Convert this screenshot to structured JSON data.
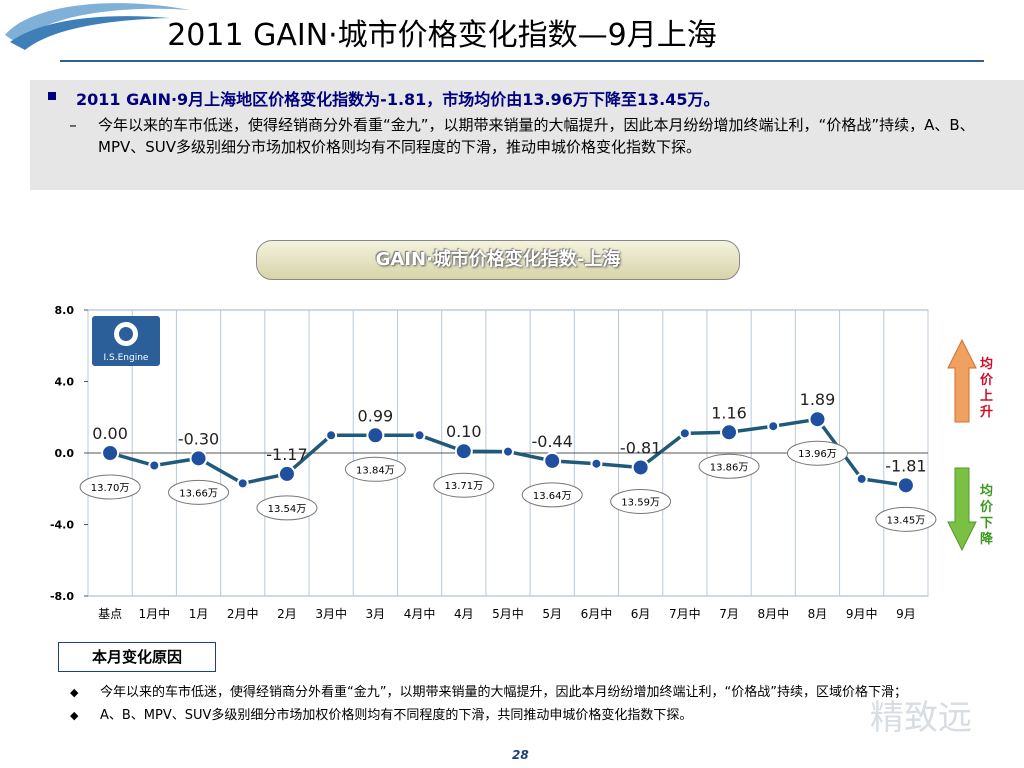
{
  "header": {
    "title": "2011 GAIN·城市价格变化指数—9月上海"
  },
  "summary": {
    "headline": "2011 GAIN·9月上海地区价格变化指数为-1.81，市场均价由13.96万下降至13.45万。",
    "detail": "今年以来的车市低迷，使得经销商分外看重“金九”，以期带来销量的大幅提升，因此本月纷纷增加终端让利，“价格战”持续，A、B、MPV、SUV多级别细分市场加权价格则均有不同程度的下滑，推动申城价格变化指数下探。"
  },
  "chart_title": "GAIN·城市价格变化指数-上海",
  "engine_logo_text": "I.S.Engine",
  "arrows": {
    "up_label": "均价上升",
    "down_label": "均价下降",
    "up_color": "#f0a060",
    "down_color": "#7bc043"
  },
  "chart_data": {
    "type": "line",
    "categories": [
      "基点",
      "1月中",
      "1月",
      "2月中",
      "2月",
      "3月中",
      "3月",
      "4月中",
      "4月",
      "5月中",
      "5月",
      "6月中",
      "6月",
      "7月中",
      "7月",
      "8月中",
      "8月",
      "9月中",
      "9月"
    ],
    "values": [
      0.0,
      -0.7,
      -0.3,
      -1.7,
      -1.17,
      0.99,
      0.99,
      0.99,
      0.1,
      0.08,
      -0.44,
      -0.6,
      -0.81,
      1.1,
      1.16,
      1.5,
      1.89,
      -1.45,
      -1.81
    ],
    "ylim": [
      -8,
      8
    ],
    "yticks": [
      "8.0",
      "4.0",
      "0.0",
      "-4.0",
      "-8.0"
    ],
    "ytick_values": [
      8,
      4,
      0,
      -4,
      -8
    ],
    "value_labels": [
      {
        "index": 0,
        "text": "0.00"
      },
      {
        "index": 2,
        "text": "-0.30"
      },
      {
        "index": 4,
        "text": "-1.17"
      },
      {
        "index": 6,
        "text": "0.99"
      },
      {
        "index": 8,
        "text": "0.10"
      },
      {
        "index": 10,
        "text": "-0.44"
      },
      {
        "index": 12,
        "text": "-0.81"
      },
      {
        "index": 14,
        "text": "1.16"
      },
      {
        "index": 16,
        "text": "1.89"
      },
      {
        "index": 18,
        "text": "-1.81"
      }
    ],
    "price_labels": [
      {
        "index": 0,
        "text": "13.70万",
        "side": "below"
      },
      {
        "index": 2,
        "text": "13.66万",
        "side": "below"
      },
      {
        "index": 4,
        "text": "13.54万",
        "side": "below"
      },
      {
        "index": 6,
        "text": "13.84万",
        "side": "below"
      },
      {
        "index": 8,
        "text": "13.71万",
        "side": "below"
      },
      {
        "index": 10,
        "text": "13.64万",
        "side": "below"
      },
      {
        "index": 12,
        "text": "13.59万",
        "side": "below"
      },
      {
        "index": 14,
        "text": "13.86万",
        "side": "below"
      },
      {
        "index": 16,
        "text": "13.96万",
        "side": "below"
      },
      {
        "index": 18,
        "text": "13.45万",
        "side": "below"
      }
    ],
    "line_color": "#1f5a7a",
    "marker_color": "#1f4f9f"
  },
  "reason": {
    "title": "本月变化原因",
    "items": [
      "今年以来的车市低迷，使得经销商分外看重“金九”，以期带来销量的大幅提升，因此本月纷纷增加终端让利，“价格战”持续，区域价格下滑；",
      "A、B、MPV、SUV多级别细分市场加权价格则均有不同程度的下滑，共同推动申城价格变化指数下探。"
    ]
  },
  "watermark": "精致远",
  "page_number": "28"
}
